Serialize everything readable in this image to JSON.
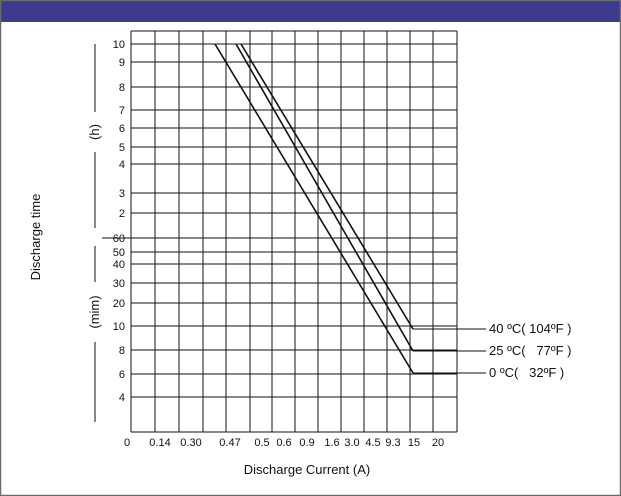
{
  "chart_data": {
    "type": "line",
    "xlabel": "Discharge Current (A)",
    "ylabel": "Discharge time",
    "unit_hours": "(h)",
    "unit_minutes": "(mim)",
    "x_tick_labels": [
      "0",
      "0.14",
      "0.30",
      "0.47",
      "0.5",
      "0.6",
      "0.9",
      "1.6",
      "3.0",
      "4.5",
      "9.3",
      "15",
      "20"
    ],
    "y_ticks_hours": [
      "10",
      "9",
      "8",
      "7",
      "6",
      "5",
      "4",
      "3",
      "2"
    ],
    "y_ticks_minutes": [
      "60",
      "50",
      "40",
      "30",
      "20",
      "10",
      "8",
      "6",
      "4"
    ],
    "grid": true,
    "series": [
      {
        "name": "40 ºC( 104ºF )",
        "points": [
          {
            "x": "0.5",
            "y": "10 h"
          },
          {
            "x": "15",
            "y": "11 min"
          }
        ]
      },
      {
        "name": "25 ºC(   77ºF )",
        "points": [
          {
            "x": "0.47",
            "y": "10 h"
          },
          {
            "x": "15",
            "y": "9 min"
          }
        ]
      },
      {
        "name": "0 ºC(   32ºF )",
        "points": [
          {
            "x": "0.30",
            "y": "10 h"
          },
          {
            "x": "15",
            "y": "7 min"
          }
        ]
      }
    ]
  },
  "colors": {
    "frame_top": "#3c3a8c",
    "border": "#6b6b6b",
    "line": "#111111"
  }
}
